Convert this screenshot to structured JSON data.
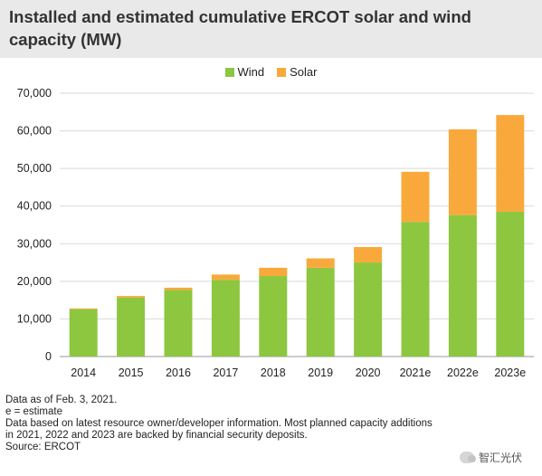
{
  "title": "Installed and estimated cumulative ERCOT solar and wind capacity (MW)",
  "colors": {
    "wind": "#8dc63f",
    "solar": "#f9a93b",
    "header_bg": "#e9e9e9",
    "grid": "#d9d9d9"
  },
  "chart_data": {
    "type": "bar",
    "stacked": true,
    "title": "Installed and estimated cumulative ERCOT solar and wind capacity (MW)",
    "xlabel": "",
    "ylabel": "",
    "categories": [
      "2014",
      "2015",
      "2016",
      "2017",
      "2018",
      "2019",
      "2020",
      "2021e",
      "2022e",
      "2023e"
    ],
    "series": [
      {
        "name": "Wind",
        "color": "#8dc63f",
        "values": [
          12600,
          15700,
          17700,
          20400,
          21400,
          23600,
          25000,
          35800,
          37600,
          38500
        ]
      },
      {
        "name": "Solar",
        "color": "#f9a93b",
        "values": [
          200,
          400,
          600,
          1400,
          2200,
          2500,
          4100,
          13300,
          22800,
          25700
        ]
      }
    ],
    "ylim": [
      0,
      70000
    ],
    "yticks": [
      "0",
      "10,000",
      "20,000",
      "30,000",
      "40,000",
      "50,000",
      "60,000",
      "70,000"
    ],
    "ytick_values": [
      0,
      10000,
      20000,
      30000,
      40000,
      50000,
      60000,
      70000
    ],
    "grid": true,
    "legend_position": "top-center"
  },
  "footnotes": [
    "Data as of Feb. 3, 2021.",
    "e = estimate",
    "Data based on latest resource owner/developer information. Most planned capacity additions",
    "in 2021, 2022 and 2023 are backed by financial security deposits.",
    "Source: ERCOT"
  ],
  "watermark": "智汇光伏"
}
